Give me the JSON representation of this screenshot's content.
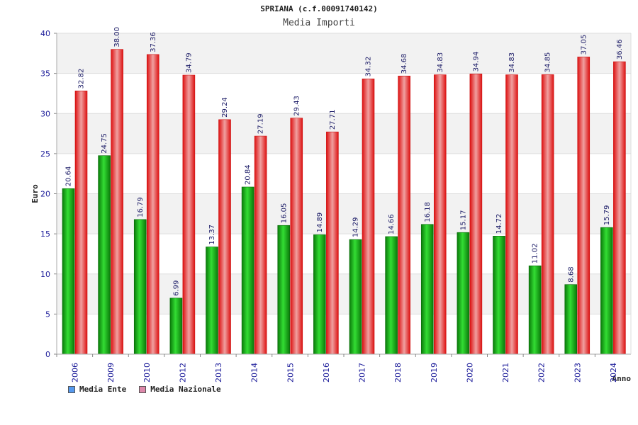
{
  "chart_data": {
    "type": "bar",
    "title": "SPRIANA (c.f.00091740142)",
    "subtitle": "Media Importi",
    "ylabel": "Euro",
    "xlabel": "Anno",
    "ylim": [
      0,
      40
    ],
    "yticks": [
      "0",
      "5",
      "10",
      "15",
      "20",
      "25",
      "30",
      "35",
      "40"
    ],
    "categories": [
      "2006",
      "2009",
      "2010",
      "2012",
      "2013",
      "2014",
      "2015",
      "2016",
      "2017",
      "2018",
      "2019",
      "2020",
      "2021",
      "2022",
      "2023",
      "2024"
    ],
    "series": [
      {
        "name": "Media Ente",
        "values": [
          20.64,
          24.75,
          16.79,
          6.99,
          13.37,
          20.84,
          16.05,
          14.89,
          14.29,
          14.66,
          16.18,
          15.17,
          14.72,
          11.02,
          8.68,
          15.79
        ],
        "labels": [
          "20.64",
          "24.75",
          "16.79",
          "6.99",
          "13.37",
          "20.84",
          "16.05",
          "14.89",
          "14.29",
          "14.66",
          "16.18",
          "15.17",
          "14.72",
          "11.02",
          "8.68",
          "15.79"
        ],
        "bar_color": "#22aa22",
        "legend_color": "#5599ee"
      },
      {
        "name": "Media Nazionale",
        "values": [
          32.82,
          38.0,
          37.36,
          34.79,
          29.24,
          27.19,
          29.43,
          27.71,
          34.32,
          34.68,
          34.83,
          34.94,
          34.83,
          34.85,
          37.05,
          36.46
        ],
        "labels": [
          "32.82",
          "38.00",
          "37.36",
          "34.79",
          "29.24",
          "27.19",
          "29.43",
          "27.71",
          "34.32",
          "34.68",
          "34.83",
          "34.94",
          "34.83",
          "34.85",
          "37.05",
          "36.46"
        ],
        "bar_color": "#ee2222",
        "legend_color": "#dd88aa"
      }
    ],
    "grid": true,
    "legend_position": "bottom-left"
  }
}
